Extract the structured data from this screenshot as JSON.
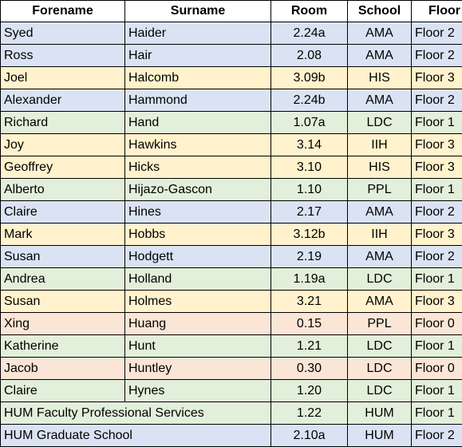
{
  "headers": {
    "forename": "Forename",
    "surname": "Surname",
    "room": "Room",
    "school": "School",
    "floor": "Floor"
  },
  "rows": [
    {
      "forename": "Syed",
      "surname": "Haider",
      "room": "2.24a",
      "school": "AMA",
      "floor": "Floor 2",
      "color": "#dae3f3"
    },
    {
      "forename": "Ross",
      "surname": "Hair",
      "room": "2.08",
      "school": "AMA",
      "floor": "Floor 2",
      "color": "#dae3f3"
    },
    {
      "forename": "Joel",
      "surname": "Halcomb",
      "room": "3.09b",
      "school": "HIS",
      "floor": "Floor 3",
      "color": "#fff2cc"
    },
    {
      "forename": "Alexander",
      "surname": "Hammond",
      "room": "2.24b",
      "school": "AMA",
      "floor": "Floor 2",
      "color": "#dae3f3"
    },
    {
      "forename": "Richard",
      "surname": "Hand",
      "room": "1.07a",
      "school": "LDC",
      "floor": "Floor 1",
      "color": "#e2efda"
    },
    {
      "forename": "Joy",
      "surname": "Hawkins",
      "room": "3.14",
      "school": "IIH",
      "floor": "Floor 3",
      "color": "#fff2cc"
    },
    {
      "forename": "Geoffrey",
      "surname": "Hicks",
      "room": "3.10",
      "school": "HIS",
      "floor": "Floor 3",
      "color": "#fff2cc"
    },
    {
      "forename": "Alberto",
      "surname": "Hijazo-Gascon",
      "room": "1.10",
      "school": "PPL",
      "floor": "Floor 1",
      "color": "#e2efda"
    },
    {
      "forename": "Claire",
      "surname": "Hines",
      "room": "2.17",
      "school": "AMA",
      "floor": "Floor 2",
      "color": "#dae3f3"
    },
    {
      "forename": "Mark",
      "surname": "Hobbs",
      "room": "3.12b",
      "school": "IIH",
      "floor": "Floor 3",
      "color": "#fff2cc"
    },
    {
      "forename": "Susan",
      "surname": "Hodgett",
      "room": "2.19",
      "school": "AMA",
      "floor": "Floor 2",
      "color": "#dae3f3"
    },
    {
      "forename": "Andrea",
      "surname": "Holland",
      "room": "1.19a",
      "school": "LDC",
      "floor": "Floor 1",
      "color": "#e2efda"
    },
    {
      "forename": "Susan",
      "surname": "Holmes",
      "room": "3.21",
      "school": "AMA",
      "floor": "Floor 3",
      "color": "#fff2cc"
    },
    {
      "forename": "Xing",
      "surname": "Huang",
      "room": "0.15",
      "school": "PPL",
      "floor": "Floor 0",
      "color": "#fbe5d6"
    },
    {
      "forename": "Katherine",
      "surname": "Hunt",
      "room": "1.21",
      "school": "LDC",
      "floor": "Floor 1",
      "color": "#e2efda"
    },
    {
      "forename": "Jacob",
      "surname": "Huntley",
      "room": "0.30",
      "school": "LDC",
      "floor": "Floor 0",
      "color": "#fbe5d6"
    },
    {
      "forename": "Claire",
      "surname": "Hynes",
      "room": "1.20",
      "school": "LDC",
      "floor": "Floor 1",
      "color": "#e2efda"
    }
  ],
  "merged_rows": [
    {
      "name": "HUM Faculty Professional Services",
      "room": "1.22",
      "school": "HUM",
      "floor": "Floor 1",
      "color": "#e2efda"
    },
    {
      "name": "HUM Graduate School",
      "room": "2.10a",
      "school": "HUM",
      "floor": "Floor 2",
      "color": "#dae3f3"
    }
  ]
}
